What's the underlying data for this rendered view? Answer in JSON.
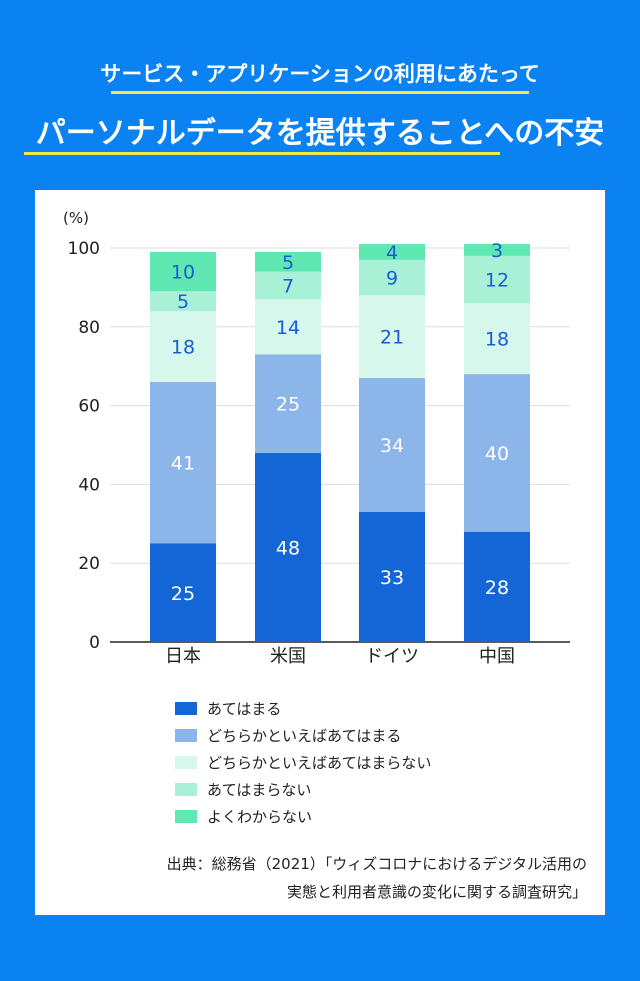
{
  "header": {
    "subtitle": "サービス・アプリケーションの利用にあたって",
    "title": "パーソナルデータを提供することへの不安"
  },
  "chart_data": {
    "type": "bar",
    "stacked": true,
    "ylabel": "(%)",
    "ylim": [
      0,
      100
    ],
    "yticks": [
      0,
      20,
      40,
      60,
      80,
      100
    ],
    "categories": [
      "日本",
      "米国",
      "ドイツ",
      "中国"
    ],
    "series": [
      {
        "name": "あてはまる",
        "color": "#1466d6",
        "values": [
          25,
          48,
          33,
          28
        ]
      },
      {
        "name": "どちらかといえばあてはまる",
        "color": "#8cb6ea",
        "values": [
          41,
          25,
          34,
          40
        ]
      },
      {
        "name": "どちらかといえばあてはまらない",
        "color": "#d6f7ec",
        "values": [
          18,
          14,
          21,
          18
        ]
      },
      {
        "name": "あてはまらない",
        "color": "#a9f1d6",
        "values": [
          5,
          7,
          9,
          12
        ]
      },
      {
        "name": "よくわからない",
        "color": "#5fe8b2",
        "values": [
          10,
          5,
          4,
          3
        ]
      }
    ],
    "legend": "bottom"
  },
  "source": {
    "line1": "出典：総務省（2021）「ウィズコロナにおけるデジタル活用の",
    "line2": "実態と利用者意識の変化に関する調査研究」"
  }
}
